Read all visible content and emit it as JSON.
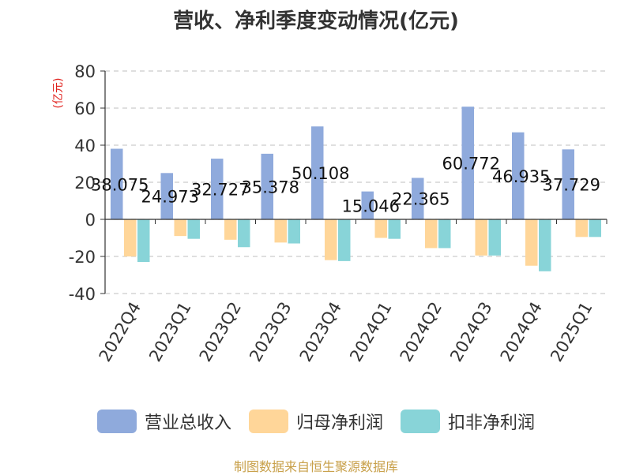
{
  "chart_data": {
    "type": "bar",
    "title": "营收、净利季度变动情况(亿元)",
    "ylabel": "(亿元)",
    "xlabel": "",
    "ylim": [
      -40,
      80
    ],
    "yticks": [
      -40,
      -20,
      0,
      20,
      40,
      60,
      80
    ],
    "grid": true,
    "legend_position": "bottom",
    "categories": [
      "2022Q4",
      "2023Q1",
      "2023Q2",
      "2023Q3",
      "2023Q4",
      "2024Q1",
      "2024Q2",
      "2024Q3",
      "2024Q4",
      "2025Q1"
    ],
    "series": [
      {
        "name": "营业总收入",
        "color": "#8faadc",
        "values": [
          38.075,
          24.973,
          32.727,
          35.378,
          50.108,
          15.046,
          22.365,
          60.772,
          46.935,
          37.729
        ],
        "labels": [
          "38.075",
          "24.973",
          "32.727",
          "35.378",
          "50.108",
          "15.046",
          "22.365",
          "60.772",
          "46.935",
          "37.729"
        ]
      },
      {
        "name": "归母净利润",
        "color": "#ffd699",
        "values": [
          -20,
          -9,
          -11,
          -12.5,
          -22,
          -10,
          -15.5,
          -19.5,
          -25,
          -9.5
        ]
      },
      {
        "name": "扣非净利润",
        "color": "#88d4d8",
        "values": [
          -23,
          -10.5,
          -15,
          -13,
          -22.5,
          -10.5,
          -15.5,
          -19.5,
          -28,
          -9.5
        ]
      }
    ]
  },
  "source": "制图数据来自恒生聚源数据库"
}
